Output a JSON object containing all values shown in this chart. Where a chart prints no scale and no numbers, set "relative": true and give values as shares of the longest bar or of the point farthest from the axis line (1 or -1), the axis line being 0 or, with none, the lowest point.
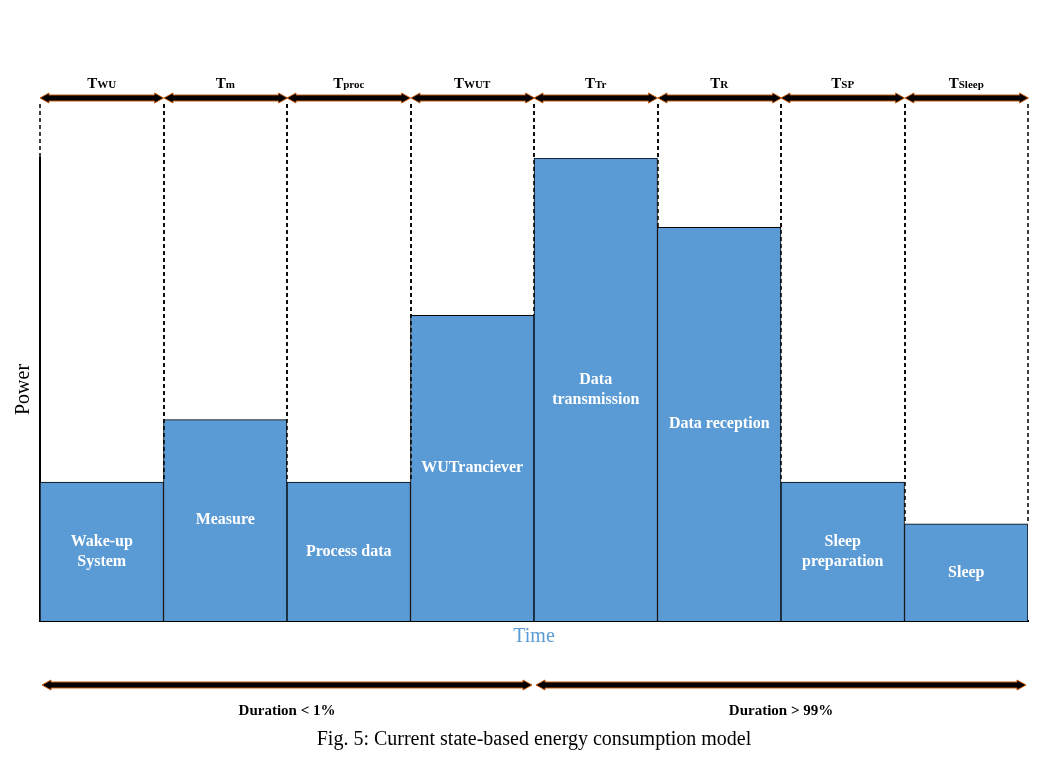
{
  "chart_data": {
    "type": "bar",
    "relative": true,
    "xlabel": "Time",
    "ylabel": "Power",
    "categories": [
      "Wake-up System",
      "Measure",
      "Process data",
      "WUTranciever",
      "Data transmission",
      "Data reception",
      "Sleep preparation",
      "Sleep"
    ],
    "values": [
      0.3,
      0.435,
      0.3,
      0.66,
      1,
      0.85,
      0.3,
      0.21
    ],
    "color": "#5b9bd5",
    "legend": false,
    "grid": false,
    "tick_labels": false,
    "annotations": [
      "T$_{WU}$",
      "T$_{m}$",
      "T$_{proc}$",
      "T$_{WUT}$",
      "T$_{Tr}$",
      "T$_{R}$",
      "T$_{SP}$",
      "T$_{Sleep}$",
      "Duration < 1%",
      "Duration > 99%",
      "Fig. 5: Current state-based energy consumption model"
    ]
  }
}
